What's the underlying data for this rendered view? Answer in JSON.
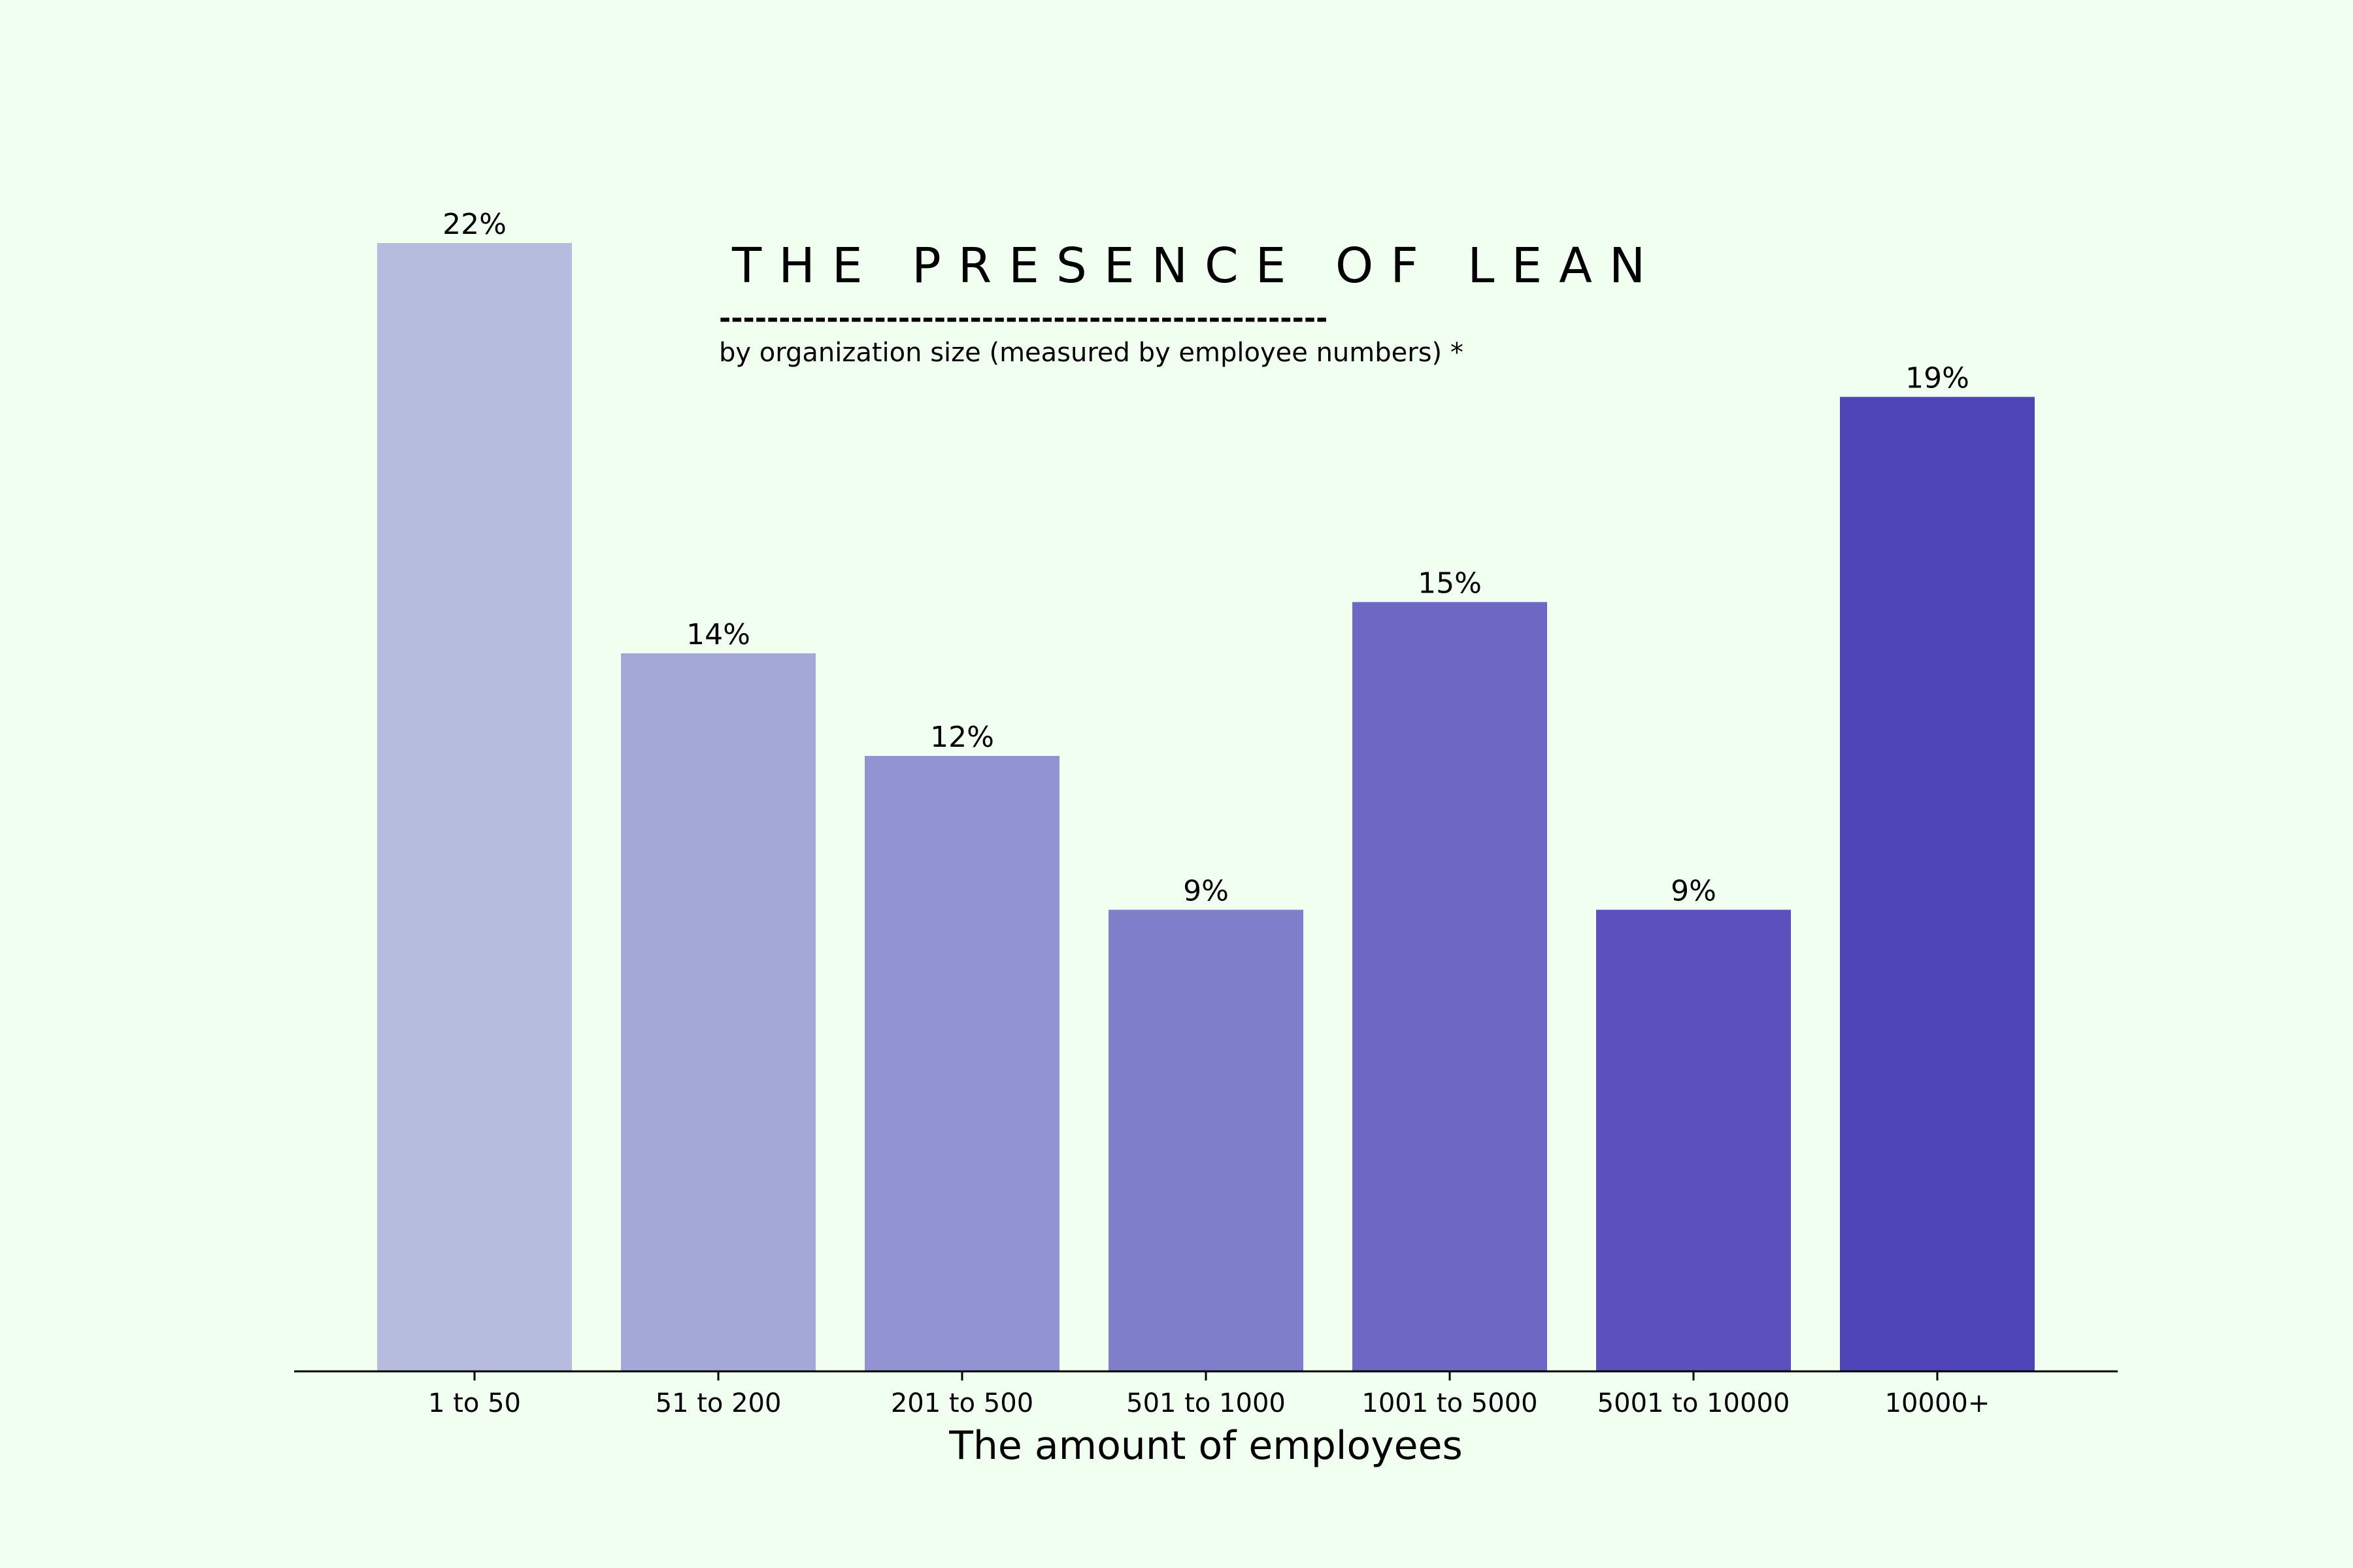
{
  "chart_data": {
    "type": "bar",
    "title": "THE PRESENCE OF LEAN",
    "divider": "---------------------------------------------------",
    "subtitle": "by organization size (measured by employee numbers) *",
    "xlabel": "The amount of employees",
    "ylabel": "",
    "categories": [
      "1 to 50",
      "51 to 200",
      "201 to 500",
      "501 to 1000",
      "1001 to 5000",
      "5001 to 10000",
      "10000+"
    ],
    "values": [
      22,
      14,
      12,
      9,
      15,
      9,
      19
    ],
    "data_labels": [
      "22%",
      "14%",
      "12%",
      "9%",
      "15%",
      "9%",
      "19%"
    ],
    "value_unit": "%",
    "colors": [
      "#B5BCDE",
      "#A4A8D7",
      "#9294D1",
      "#7F7ECA",
      "#6D68C4",
      "#5C50BE",
      "#4F44B8"
    ],
    "ylim": [
      0,
      22
    ],
    "grid": false,
    "background": "#F0FFF0",
    "axis_color": "#000000"
  }
}
